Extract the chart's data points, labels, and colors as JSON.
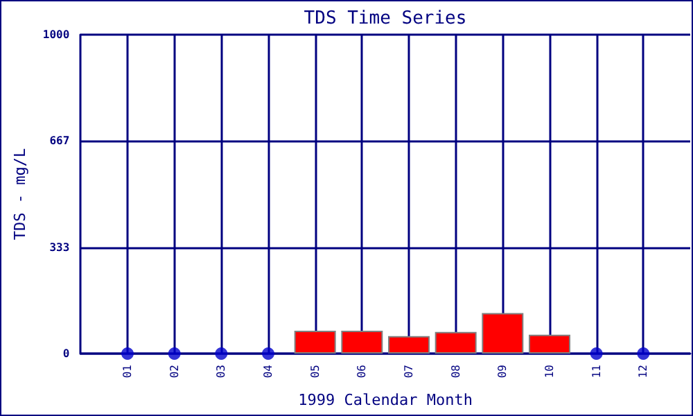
{
  "chart_data": {
    "type": "bar",
    "title": "TDS Time Series",
    "xlabel": "1999 Calendar Month",
    "ylabel": "TDS - mg/L",
    "categories": [
      "01",
      "02",
      "03",
      "04",
      "05",
      "06",
      "07",
      "08",
      "09",
      "10",
      "11",
      "12"
    ],
    "series": [
      {
        "color": "#ff0000",
        "values": [
          null,
          null,
          null,
          null,
          72,
          72,
          55,
          68,
          127,
          59,
          null,
          null
        ]
      },
      {
        "type": "scatter",
        "color": "#0000cc",
        "x": [
          "01",
          "02",
          "03",
          "04",
          "11",
          "12"
        ],
        "values": [
          0,
          0,
          0,
          0,
          0,
          0
        ]
      }
    ],
    "ylim": [
      0,
      1000
    ],
    "yticks": [
      0,
      333,
      667,
      1000
    ],
    "grid": true,
    "marker": "circle"
  }
}
